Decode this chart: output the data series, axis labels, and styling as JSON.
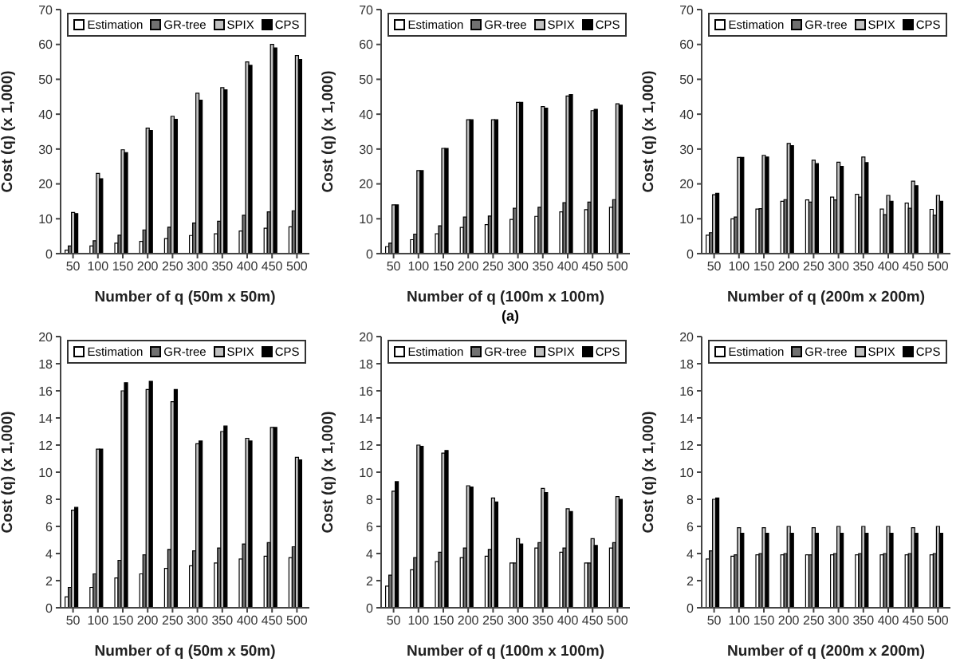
{
  "chart_data": [
    {
      "type": "bar",
      "xlabel": "Number of q (50m x 50m)",
      "ylabel": "Cost (q)  (x 1,000)",
      "categories": [
        "50",
        "100",
        "150",
        "200",
        "250",
        "300",
        "350",
        "400",
        "450",
        "500"
      ],
      "ylim": [
        0,
        70
      ],
      "yticks": [
        0,
        10,
        20,
        30,
        40,
        50,
        60,
        70
      ],
      "grid": false,
      "legend": "top",
      "series": [
        {
          "name": "Estimation",
          "color": "#ffffff",
          "values": [
            1,
            2.2,
            3,
            3.5,
            4.3,
            5.2,
            5.7,
            6.5,
            7.3,
            7.7
          ]
        },
        {
          "name": "GR-tree",
          "color": "#707070",
          "values": [
            2.2,
            3.7,
            5.3,
            6.8,
            7.6,
            8.8,
            9.3,
            11,
            12,
            12.3
          ]
        },
        {
          "name": "SPIX",
          "color": "#c0c0c0",
          "values": [
            11.8,
            23,
            29.8,
            36,
            39.4,
            46,
            47.6,
            55,
            60,
            56.8
          ]
        },
        {
          "name": "CPS",
          "color": "#000000",
          "values": [
            11.5,
            21.5,
            29,
            35.3,
            38.5,
            44,
            47,
            54,
            59,
            55.7
          ]
        }
      ]
    },
    {
      "type": "bar",
      "xlabel": "Number of q (100m x 100m)",
      "ylabel": "Cost (q)  (x 1,000)",
      "annotations": [
        "(a)"
      ],
      "categories": [
        "50",
        "100",
        "150",
        "200",
        "250",
        "300",
        "350",
        "400",
        "450",
        "500"
      ],
      "ylim": [
        0,
        70
      ],
      "yticks": [
        0,
        10,
        20,
        30,
        40,
        50,
        60,
        70
      ],
      "grid": false,
      "legend": "top",
      "series": [
        {
          "name": "Estimation",
          "color": "#ffffff",
          "values": [
            2,
            4,
            5.7,
            7.5,
            8.3,
            9.8,
            10.7,
            12,
            12.6,
            13.3
          ]
        },
        {
          "name": "GR-tree",
          "color": "#707070",
          "values": [
            3,
            5.6,
            8,
            10.5,
            10.8,
            13,
            13.3,
            14.6,
            14.8,
            15.5
          ]
        },
        {
          "name": "SPIX",
          "color": "#c0c0c0",
          "values": [
            14,
            23.8,
            30.2,
            38.4,
            38.4,
            43.4,
            42.2,
            45.2,
            41,
            43
          ]
        },
        {
          "name": "CPS",
          "color": "#000000",
          "values": [
            14,
            23.8,
            30.2,
            38.4,
            38.4,
            43.4,
            41.7,
            45.6,
            41.4,
            42.6
          ]
        }
      ]
    },
    {
      "type": "bar",
      "xlabel": "Number of q (200m x 200m)",
      "ylabel": "Cost (q)  (x 1,000)",
      "categories": [
        "50",
        "100",
        "150",
        "200",
        "250",
        "300",
        "350",
        "400",
        "450",
        "500"
      ],
      "ylim": [
        0,
        70
      ],
      "yticks": [
        0,
        10,
        20,
        30,
        40,
        50,
        60,
        70
      ],
      "grid": false,
      "legend": "top",
      "series": [
        {
          "name": "Estimation",
          "color": "#ffffff",
          "values": [
            5.3,
            10,
            12.8,
            15,
            15.4,
            16.2,
            17,
            12.8,
            14.5,
            12.7
          ]
        },
        {
          "name": "GR-tree",
          "color": "#707070",
          "values": [
            6,
            10.5,
            12.9,
            15.5,
            14.8,
            15.4,
            16.2,
            11.2,
            13,
            11
          ]
        },
        {
          "name": "SPIX",
          "color": "#c0c0c0",
          "values": [
            16.9,
            27.6,
            28.2,
            31.6,
            26.8,
            26.2,
            27.7,
            16.7,
            20.8,
            16.7
          ]
        },
        {
          "name": "CPS",
          "color": "#000000",
          "values": [
            17.3,
            27.6,
            27.7,
            31,
            25.8,
            25,
            26.1,
            15,
            19.5,
            15
          ]
        }
      ]
    },
    {
      "type": "bar",
      "xlabel": "Number of q (50m x 50m)",
      "ylabel": "Cost (q)  (x 1,000)",
      "categories": [
        "50",
        "100",
        "150",
        "200",
        "250",
        "300",
        "350",
        "400",
        "450",
        "500"
      ],
      "ylim": [
        0,
        20
      ],
      "yticks": [
        0,
        2,
        4,
        6,
        8,
        10,
        12,
        14,
        16,
        18,
        20
      ],
      "grid": false,
      "legend": "top",
      "series": [
        {
          "name": "Estimation",
          "color": "#ffffff",
          "values": [
            0.8,
            1.5,
            2.2,
            2.5,
            2.9,
            3.1,
            3.3,
            3.6,
            3.8,
            3.7
          ]
        },
        {
          "name": "GR-tree",
          "color": "#707070",
          "values": [
            1.5,
            2.5,
            3.5,
            3.9,
            4.3,
            4.2,
            4.4,
            4.7,
            4.8,
            4.5
          ]
        },
        {
          "name": "SPIX",
          "color": "#c0c0c0",
          "values": [
            7.2,
            11.7,
            16,
            16.1,
            15.2,
            12.1,
            13,
            12.5,
            13.3,
            11.1
          ]
        },
        {
          "name": "CPS",
          "color": "#000000",
          "values": [
            7.4,
            11.7,
            16.6,
            16.7,
            16.1,
            12.3,
            13.4,
            12.3,
            13.3,
            10.9
          ]
        }
      ]
    },
    {
      "type": "bar",
      "xlabel": "Number of q (100m x 100m)",
      "ylabel": "Cost (q)  (x 1,000)",
      "categories": [
        "50",
        "100",
        "150",
        "200",
        "250",
        "300",
        "350",
        "400",
        "450",
        "500"
      ],
      "ylim": [
        0,
        20
      ],
      "yticks": [
        0,
        2,
        4,
        6,
        8,
        10,
        12,
        14,
        16,
        18,
        20
      ],
      "grid": false,
      "legend": "top",
      "series": [
        {
          "name": "Estimation",
          "color": "#ffffff",
          "values": [
            1.6,
            2.8,
            3.4,
            3.7,
            3.8,
            3.3,
            4.4,
            4.1,
            3.3,
            4.4
          ]
        },
        {
          "name": "GR-tree",
          "color": "#707070",
          "values": [
            2.4,
            3.7,
            4.1,
            4.4,
            4.3,
            3.3,
            4.8,
            4.4,
            3.3,
            4.8
          ]
        },
        {
          "name": "SPIX",
          "color": "#c0c0c0",
          "values": [
            8.6,
            12,
            11.4,
            9,
            8.1,
            5.1,
            8.8,
            7.3,
            5.1,
            8.2
          ]
        },
        {
          "name": "CPS",
          "color": "#000000",
          "values": [
            9.3,
            11.9,
            11.6,
            8.9,
            7.8,
            4.7,
            8.5,
            7.1,
            4.6,
            8
          ]
        }
      ]
    },
    {
      "type": "bar",
      "xlabel": "Number of q (200m x 200m)",
      "ylabel": "Cost (q)  (x 1,000)",
      "categories": [
        "50",
        "100",
        "150",
        "200",
        "250",
        "300",
        "350",
        "400",
        "450",
        "500"
      ],
      "ylim": [
        0,
        20
      ],
      "yticks": [
        0,
        2,
        4,
        6,
        8,
        10,
        12,
        14,
        16,
        18,
        20
      ],
      "grid": false,
      "legend": "top",
      "series": [
        {
          "name": "Estimation",
          "color": "#ffffff",
          "values": [
            3.6,
            3.8,
            3.9,
            3.9,
            3.9,
            3.9,
            3.9,
            3.9,
            3.9,
            3.9
          ]
        },
        {
          "name": "GR-tree",
          "color": "#707070",
          "values": [
            4.2,
            3.9,
            4,
            4,
            3.9,
            4,
            4,
            4,
            4,
            4
          ]
        },
        {
          "name": "SPIX",
          "color": "#c0c0c0",
          "values": [
            8,
            5.9,
            5.9,
            6,
            5.9,
            6,
            6,
            6,
            5.9,
            6
          ]
        },
        {
          "name": "CPS",
          "color": "#000000",
          "values": [
            8.1,
            5.5,
            5.5,
            5.5,
            5.5,
            5.5,
            5.5,
            5.5,
            5.5,
            5.5
          ]
        }
      ]
    }
  ]
}
